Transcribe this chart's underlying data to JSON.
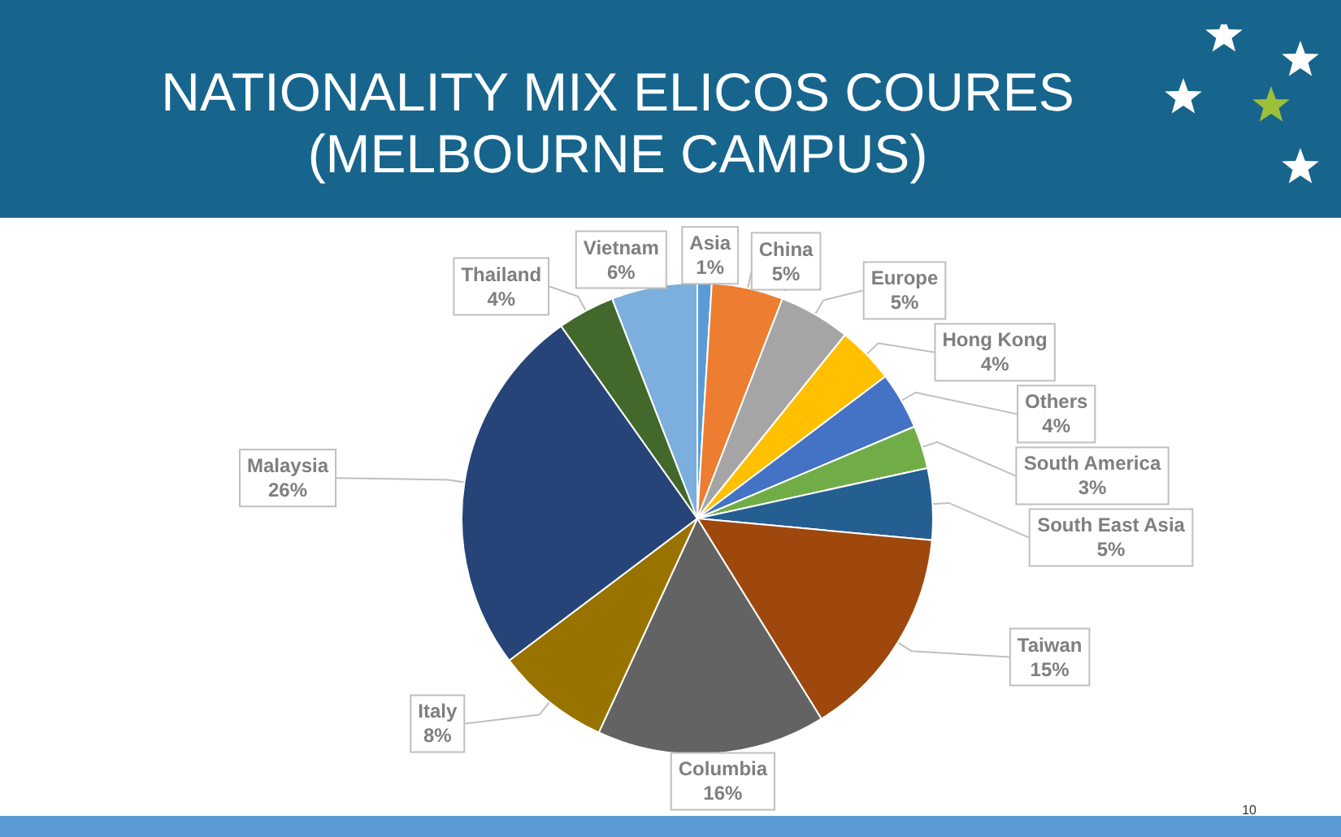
{
  "chart_data": {
    "type": "pie",
    "title": "NATIONALITY MIX ELICOS COURES\n(MELBOURNE CAMPUS)",
    "categories": [
      "Asia",
      "China",
      "Europe",
      "Hong Kong",
      "Others",
      "South America",
      "South East Asia",
      "Taiwan",
      "Columbia",
      "Italy",
      "Malaysia",
      "Thailand",
      "Vietnam"
    ],
    "values": [
      1,
      5,
      5,
      4,
      4,
      3,
      5,
      15,
      16,
      8,
      26,
      4,
      6
    ],
    "value_labels": [
      "1%",
      "5%",
      "5%",
      "4%",
      "4%",
      "3%",
      "5%",
      "15%",
      "16%",
      "8%",
      "26%",
      "4%",
      "6%"
    ],
    "colors": [
      "#5b9bd5",
      "#ed7d31",
      "#a5a5a5",
      "#ffc000",
      "#4472c4",
      "#70ad47",
      "#255e91",
      "#9e480e",
      "#636363",
      "#997300",
      "#264478",
      "#43682b",
      "#7cafdd"
    ],
    "legend": false,
    "annotations": [
      "10"
    ]
  }
}
